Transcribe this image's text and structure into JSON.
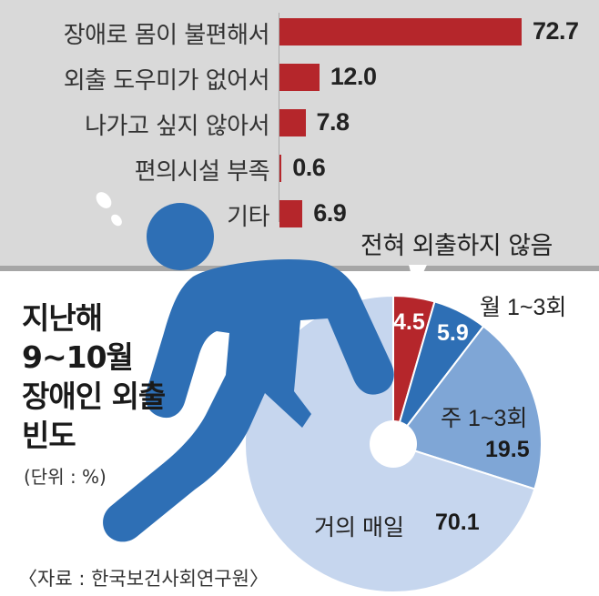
{
  "chart_data": [
    {
      "type": "bar",
      "categories": [
        "장애로 몸이 불편해서",
        "외출 도우미가 없어서",
        "나가고 싶지 않아서",
        "편의시설 부족",
        "기타"
      ],
      "values": [
        72.7,
        12.0,
        7.8,
        0.6,
        6.9
      ],
      "value_labels": [
        "72.7",
        "12.0",
        "7.8",
        "0.6",
        "6.9"
      ],
      "xlim": [
        0,
        72.7
      ],
      "subtitle": "전혀 외출하지 않음",
      "color": "#b5262b"
    },
    {
      "type": "pie",
      "title": "지난해\n9~10월\n장애인 외출\n빈도",
      "categories": [
        "전혀 외출하지 않음",
        "월 1~3회",
        "주 1~3회",
        "거의 매일"
      ],
      "values": [
        4.5,
        5.9,
        19.5,
        70.1
      ],
      "value_labels": [
        "4.5",
        "5.9",
        "19.5",
        "70.1"
      ],
      "slice_labels": [
        "",
        "월 1~3회",
        "주 1~3회",
        "거의 매일"
      ],
      "colors": [
        "#b5262b",
        "#2e6fb5",
        "#7fa6d6",
        "#c6d6ee"
      ],
      "unit_note": "(단위 : %)"
    }
  ],
  "source": "〈자료 : 한국보건사회연구원〉",
  "colors": {
    "panel": "#d9d9d9",
    "figure": "#2e6fb5"
  }
}
